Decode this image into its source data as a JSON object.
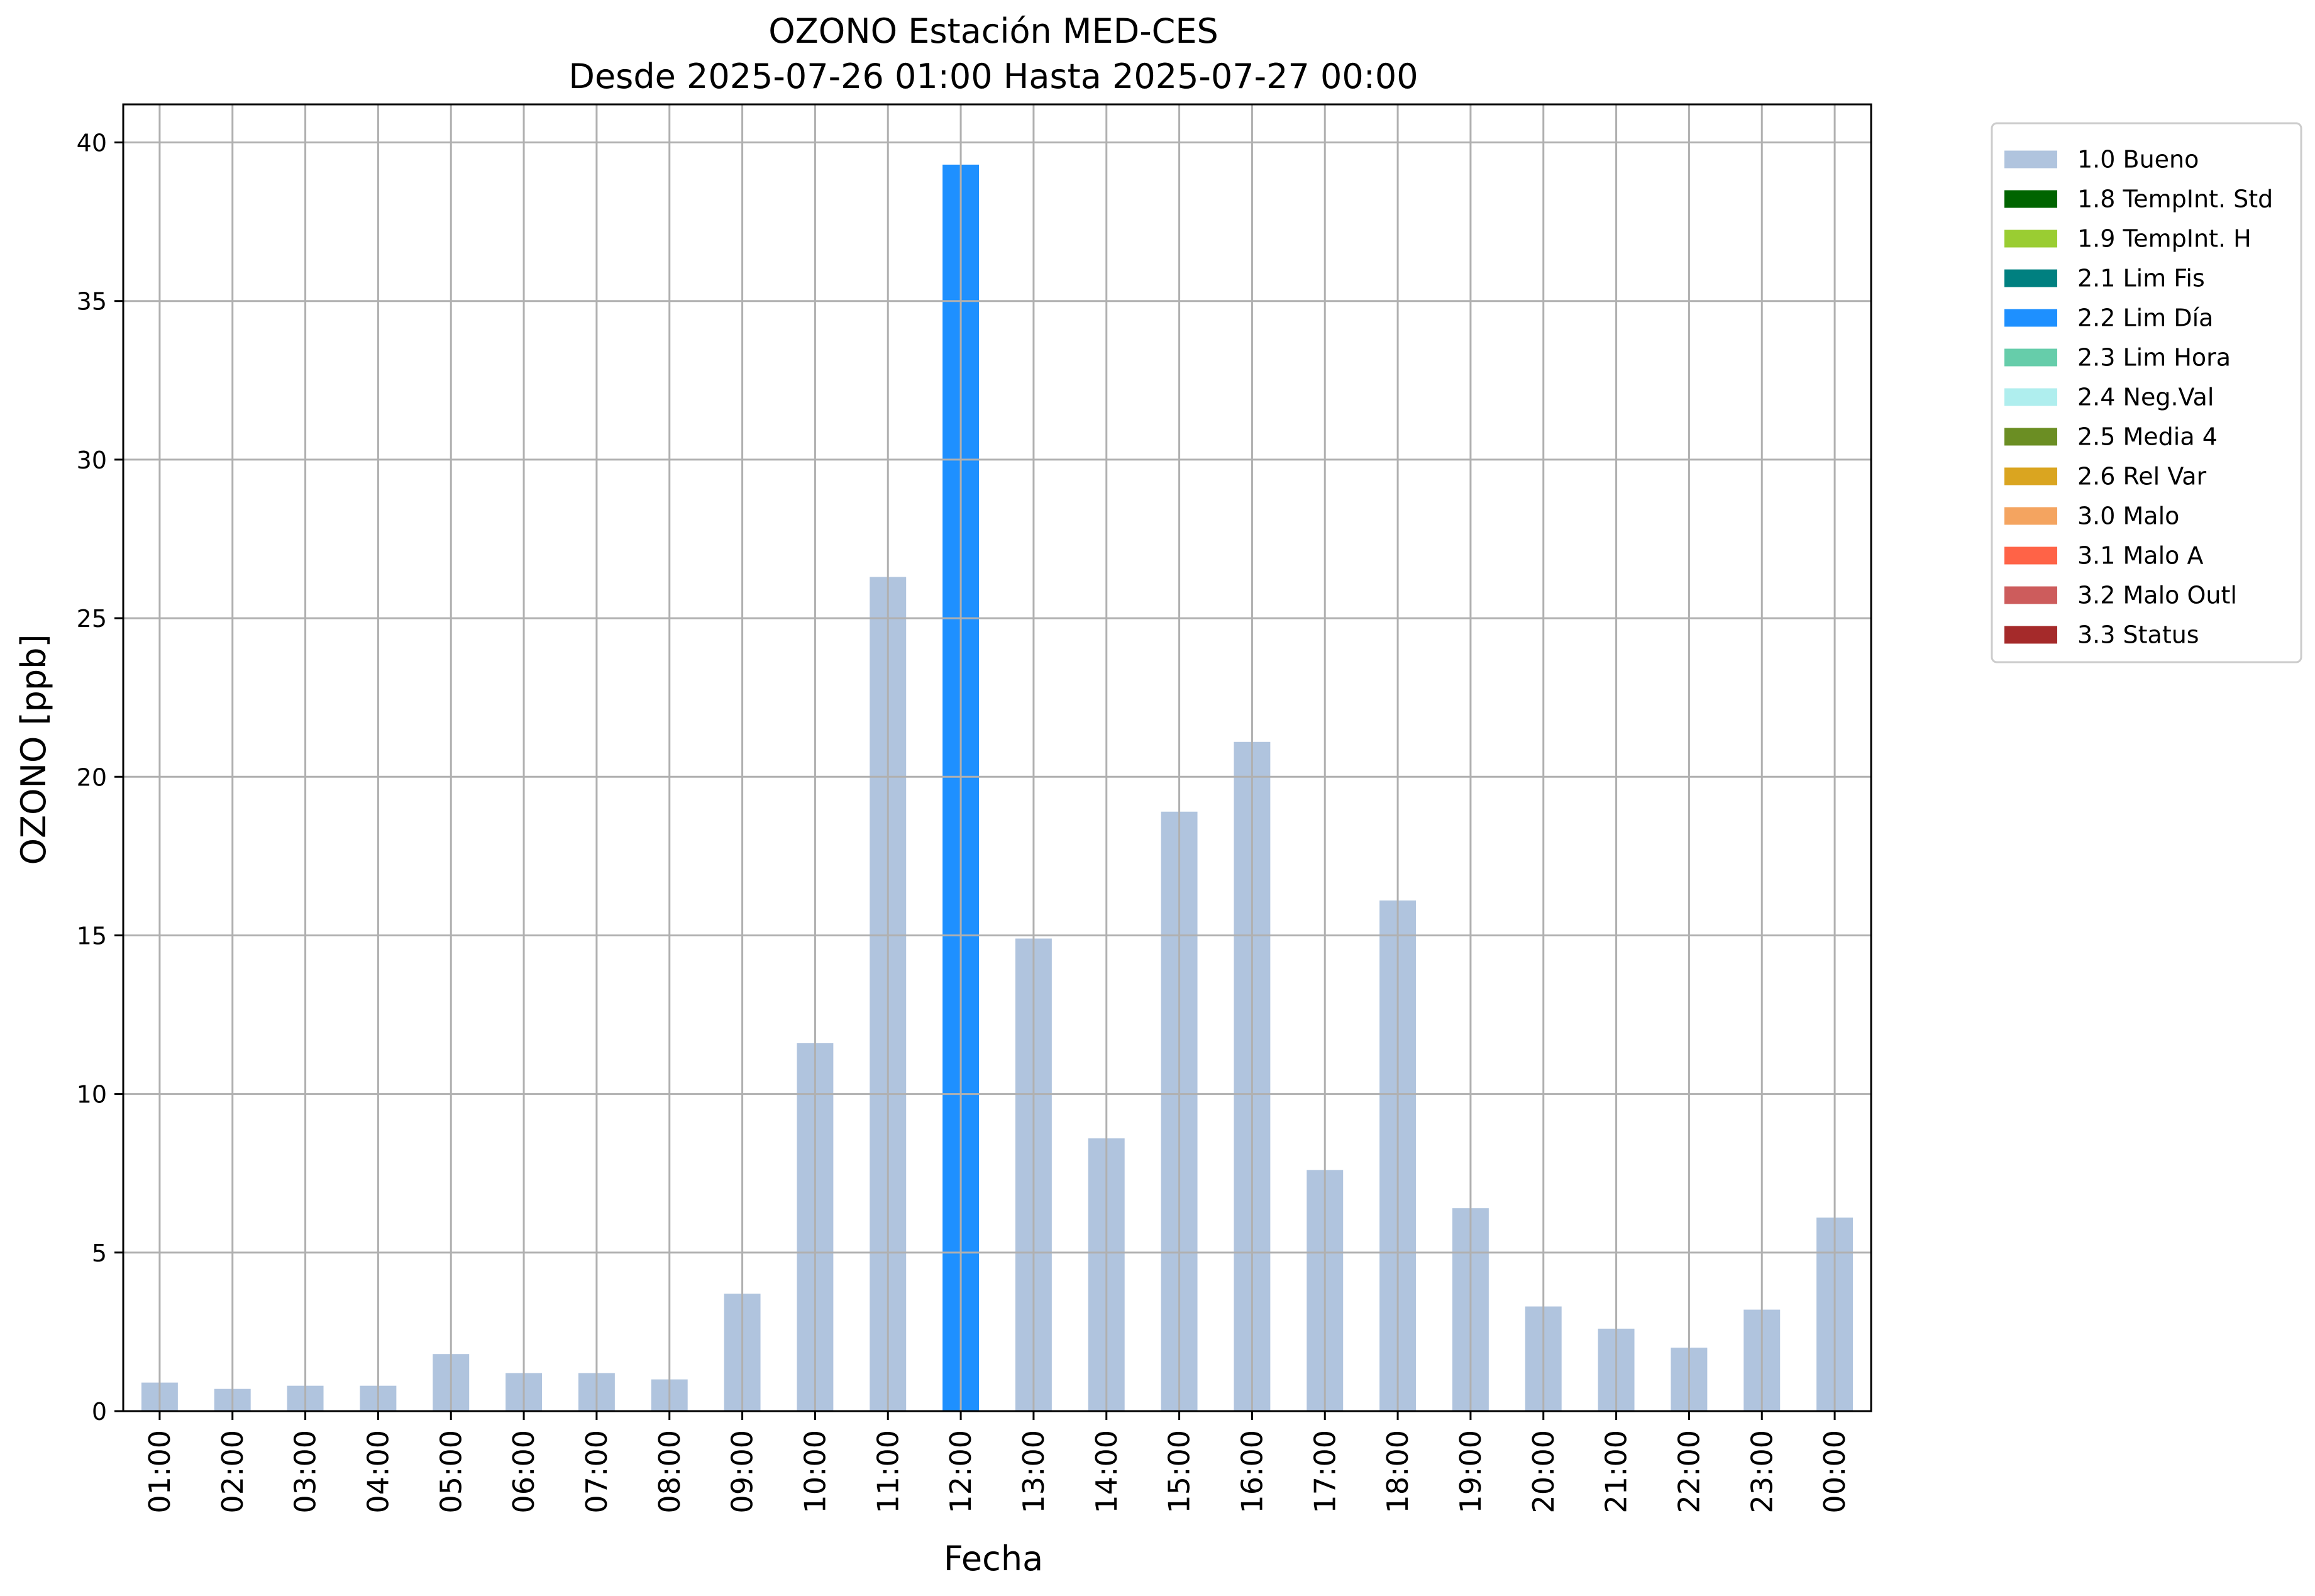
{
  "chart_data": {
    "type": "bar",
    "title": "OZONO Estación MED-CES",
    "subtitle": "Desde 2025-07-26 01:00 Hasta 2025-07-27 00:00",
    "xlabel": "Fecha",
    "ylabel": "OZONO [ppb]",
    "ylim": [
      0,
      41.2
    ],
    "yticks": [
      0,
      5,
      10,
      15,
      20,
      25,
      30,
      35,
      40
    ],
    "ytick_labels": [
      "0",
      "5",
      "10",
      "15",
      "20",
      "25",
      "30",
      "35",
      "40"
    ],
    "grid": true,
    "legend_position": "outside-right-top",
    "categories": [
      "01:00",
      "02:00",
      "03:00",
      "04:00",
      "05:00",
      "06:00",
      "07:00",
      "08:00",
      "09:00",
      "10:00",
      "11:00",
      "12:00",
      "13:00",
      "14:00",
      "15:00",
      "16:00",
      "17:00",
      "18:00",
      "19:00",
      "20:00",
      "21:00",
      "22:00",
      "23:00",
      "00:00"
    ],
    "values": [
      0.9,
      0.7,
      0.8,
      0.8,
      1.8,
      1.2,
      1.2,
      1.0,
      3.7,
      11.6,
      26.3,
      39.3,
      14.9,
      8.6,
      18.9,
      21.1,
      7.6,
      16.1,
      6.4,
      3.3,
      2.6,
      2.0,
      3.2,
      6.1
    ],
    "flags": [
      0,
      0,
      0,
      0,
      0,
      0,
      0,
      0,
      0,
      0,
      0,
      4,
      0,
      0,
      0,
      0,
      0,
      0,
      0,
      0,
      0,
      0,
      0,
      0
    ],
    "legend": [
      {
        "label": "1.0 Bueno",
        "color": "#b0c4de"
      },
      {
        "label": "1.8 TempInt. Std",
        "color": "#006400"
      },
      {
        "label": "1.9 TempInt. H",
        "color": "#9acd32"
      },
      {
        "label": "2.1 Lim Fis",
        "color": "#008080"
      },
      {
        "label": "2.2 Lim Día",
        "color": "#1e90ff"
      },
      {
        "label": "2.3 Lim Hora",
        "color": "#66cdaa"
      },
      {
        "label": "2.4 Neg.Val",
        "color": "#afeeee"
      },
      {
        "label": "2.5 Media 4",
        "color": "#6b8e23"
      },
      {
        "label": "2.6 Rel Var",
        "color": "#daa520"
      },
      {
        "label": "3.0 Malo",
        "color": "#f4a460"
      },
      {
        "label": "3.1 Malo A",
        "color": "#ff6347"
      },
      {
        "label": "3.2 Malo Outl",
        "color": "#cd5c5c"
      },
      {
        "label": "3.3 Status",
        "color": "#a52a2a"
      }
    ]
  }
}
